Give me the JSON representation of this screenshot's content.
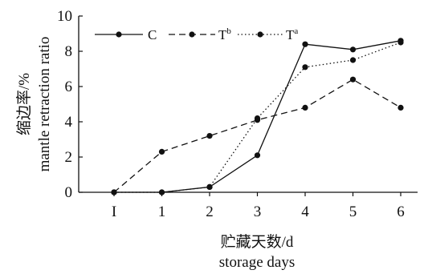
{
  "chart_data": {
    "type": "line",
    "categories": [
      "I",
      "1",
      "2",
      "3",
      "4",
      "5",
      "6"
    ],
    "xlabel": [
      "贮藏天数/d",
      "storage days"
    ],
    "ylabel": [
      "缩边率/%",
      "mantle retraction ratio"
    ],
    "ylim": [
      0,
      10
    ],
    "yticks": [
      0,
      2,
      4,
      6,
      8,
      10
    ],
    "grid": false,
    "legend_position": "top-left",
    "series": [
      {
        "name": "C",
        "style": "solid",
        "values": [
          0,
          0,
          0.3,
          2.1,
          8.4,
          8.1,
          8.6
        ]
      },
      {
        "name": "Tb",
        "label_base": "T",
        "label_sup": "b",
        "style": "dashed",
        "values": [
          0,
          2.3,
          3.2,
          4.1,
          4.8,
          6.4,
          4.8
        ]
      },
      {
        "name": "Ta",
        "label_base": "T",
        "label_sup": "a",
        "style": "dotted",
        "values": [
          0,
          0,
          0.3,
          4.2,
          7.1,
          7.5,
          8.5
        ]
      }
    ],
    "line_color": "#111111"
  }
}
